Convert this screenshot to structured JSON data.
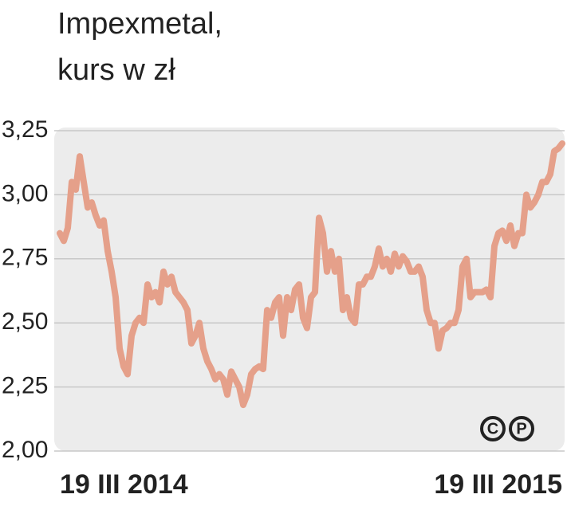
{
  "chart_data": {
    "type": "line",
    "title": [
      "Impexmetal,",
      "kurs w zł"
    ],
    "categories": [
      "19 III 2014",
      null,
      null,
      null,
      null,
      null,
      null,
      null,
      null,
      null,
      null,
      null,
      null,
      null,
      null,
      null,
      null,
      null,
      null,
      null,
      null,
      null,
      null,
      null,
      null,
      null,
      null,
      null,
      null,
      null,
      null,
      null,
      null,
      null,
      null,
      null,
      null,
      null,
      null,
      null,
      null,
      null,
      null,
      null,
      null,
      null,
      null,
      null,
      null,
      null,
      null,
      null,
      null,
      null,
      null,
      null,
      null,
      null,
      null,
      null,
      null,
      null,
      null,
      null,
      null,
      null,
      null,
      null,
      null,
      null,
      null,
      null,
      null,
      null,
      null,
      null,
      null,
      null,
      null,
      null,
      null,
      null,
      null,
      null,
      null,
      null,
      null,
      null,
      null,
      null,
      null,
      null,
      null,
      null,
      null,
      null,
      null,
      null,
      null,
      null,
      null,
      null,
      null,
      null,
      null,
      null,
      null,
      null,
      null,
      null,
      null,
      null,
      null,
      null,
      null,
      null,
      null,
      null,
      null,
      null,
      null,
      null,
      null,
      null,
      null,
      null,
      "19 III 2015"
    ],
    "values": [
      2.85,
      2.82,
      2.87,
      3.05,
      3.02,
      3.15,
      3.05,
      2.95,
      2.97,
      2.92,
      2.88,
      2.9,
      2.78,
      2.7,
      2.6,
      2.4,
      2.33,
      2.3,
      2.45,
      2.5,
      2.52,
      2.5,
      2.65,
      2.6,
      2.62,
      2.58,
      2.7,
      2.65,
      2.68,
      2.62,
      2.6,
      2.58,
      2.55,
      2.42,
      2.45,
      2.5,
      2.4,
      2.35,
      2.32,
      2.28,
      2.3,
      2.28,
      2.22,
      2.31,
      2.28,
      2.25,
      2.18,
      2.22,
      2.3,
      2.32,
      2.33,
      2.32,
      2.55,
      2.52,
      2.58,
      2.6,
      2.45,
      2.6,
      2.55,
      2.63,
      2.65,
      2.52,
      2.48,
      2.6,
      2.62,
      2.91,
      2.85,
      2.7,
      2.78,
      2.7,
      2.75,
      2.55,
      2.6,
      2.52,
      2.5,
      2.65,
      2.65,
      2.68,
      2.68,
      2.72,
      2.79,
      2.72,
      2.75,
      2.7,
      2.77,
      2.72,
      2.76,
      2.74,
      2.7,
      2.7,
      2.72,
      2.68,
      2.55,
      2.5,
      2.5,
      2.4,
      2.47,
      2.48,
      2.5,
      2.5,
      2.55,
      2.72,
      2.75,
      2.6,
      2.62,
      2.62,
      2.62,
      2.63,
      2.6,
      2.8,
      2.85,
      2.86,
      2.82,
      2.88,
      2.8,
      2.85,
      2.85,
      3.0,
      2.95,
      2.97,
      3.0,
      3.05,
      3.05,
      3.08,
      3.17,
      3.18,
      3.2
    ],
    "color": "#e5a08a",
    "ylim": [
      2.0,
      3.25
    ],
    "yticks": [
      {
        "value": 2.0,
        "label": "2,00"
      },
      {
        "value": 2.25,
        "label": "2,25"
      },
      {
        "value": 2.5,
        "label": "2,50"
      },
      {
        "value": 2.75,
        "label": "2,75"
      },
      {
        "value": 3.0,
        "label": "3,00"
      },
      {
        "value": 3.25,
        "label": "3,25"
      }
    ],
    "grid": true,
    "logo": [
      "C",
      "P"
    ]
  }
}
